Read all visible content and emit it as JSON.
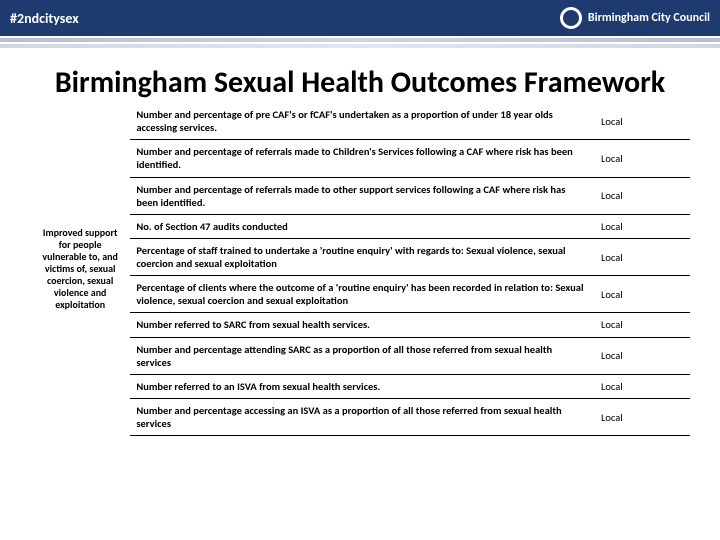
{
  "header": {
    "hashtag": "#2ndcitysex",
    "logo_text": "Birmingham City Council"
  },
  "title": "Birmingham Sexual Health Outcomes Framework",
  "category": "Improved support for people vulnerable to, and victims of, sexual coercion, sexual violence and exploitation",
  "rows": [
    {
      "indicator": "Number and percentage of pre CAF's or fCAF's undertaken as a proportion of under 18 year olds accessing services.",
      "level": "Local"
    },
    {
      "indicator": "Number and percentage of referrals made to Children's Services following a CAF where risk has been identified.",
      "level": "Local"
    },
    {
      "indicator": "Number and percentage of referrals made to other support services following a CAF where risk has been identified.",
      "level": "Local"
    },
    {
      "indicator": "No. of  Section 47 audits  conducted",
      "level": "Local"
    },
    {
      "indicator": "Percentage of staff trained to undertake a 'routine enquiry' with regards to: Sexual violence, sexual coercion and sexual exploitation",
      "level": "Local"
    },
    {
      "indicator": "Percentage of clients where the outcome of a 'routine enquiry' has been recorded in relation to: Sexual violence, sexual coercion and sexual exploitation",
      "level": "Local"
    },
    {
      "indicator": "Number referred to  SARC from sexual health services.",
      "level": "Local"
    },
    {
      "indicator": "Number and percentage attending SARC as a proportion of all those referred from sexual health services",
      "level": "Local"
    },
    {
      "indicator": "Number referred to an ISVA from sexual health services.",
      "level": "Local"
    },
    {
      "indicator": "Number and percentage accessing an ISVA as a proportion of all those referred from sexual health services",
      "level": "Local"
    }
  ],
  "styling": {
    "header_bg": "#1f3a6e",
    "header_text_color": "#ffffff",
    "title_color": "#000000",
    "title_fontsize": 30,
    "table_fontsize": 10.5,
    "border_color": "#000000",
    "background": "#ffffff"
  }
}
